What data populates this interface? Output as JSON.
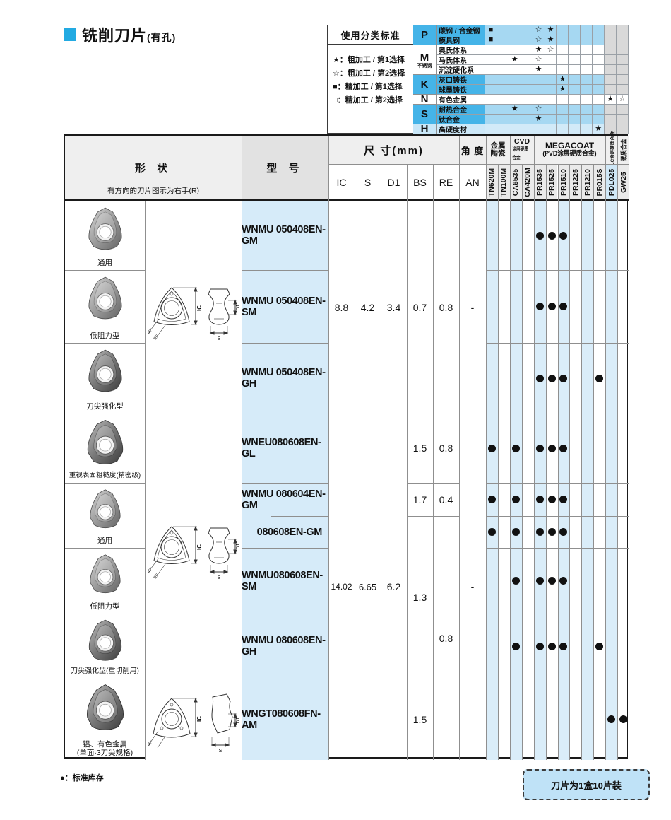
{
  "title": {
    "text": "铣削刀片",
    "suffix": "(有孔)"
  },
  "colors": {
    "accent_blue": "#22AAE2",
    "legend_blue": "#45B4E8",
    "legend_light_blue": "#A6D8F2",
    "row_light_blue": "#D2EAF8",
    "stripe_blue": "#DAEDF9",
    "model_blue": "#D6EBF9",
    "tail_gray": "#D9D9D9",
    "dot_black": "#111111"
  },
  "legend": {
    "header": "使用分类标准",
    "items": [
      "★：粗加工 / 第1选择",
      "☆：粗加工 / 第2选择",
      "■：精加工 / 第1选择",
      "□：精加工 / 第2选择"
    ],
    "letters": [
      {
        "label": "P",
        "note": ""
      },
      {
        "label": "M",
        "note": "不锈钢"
      },
      {
        "label": "K",
        "note": ""
      },
      {
        "label": "N",
        "note": ""
      },
      {
        "label": "S",
        "note": ""
      },
      {
        "label": "H",
        "note": ""
      }
    ],
    "rows": [
      {
        "material": "碳钢 / 合金钢",
        "tone": "blue",
        "marks": {
          "1": "■",
          "5": "☆",
          "6": "★"
        }
      },
      {
        "material": "模具钢",
        "tone": "blue",
        "marks": {
          "1": "■",
          "5": "☆",
          "6": "★"
        }
      },
      {
        "material": "奥氏体系",
        "tone": "white",
        "marks": {
          "5": "★",
          "6": "☆"
        }
      },
      {
        "material": "马氏体系",
        "tone": "white",
        "marks": {
          "3": "★",
          "5": "☆"
        }
      },
      {
        "material": "沉淀硬化系",
        "tone": "white",
        "marks": {
          "5": "★"
        }
      },
      {
        "material": "灰口铸铁",
        "tone": "blue",
        "marks": {
          "7": "★"
        }
      },
      {
        "material": "球墨铸铁",
        "tone": "blue",
        "marks": {
          "7": "★"
        }
      },
      {
        "material": "有色金属",
        "tone": "white",
        "tail": "white",
        "marks": {
          "11": "★",
          "12": "☆"
        }
      },
      {
        "material": "耐热合金",
        "tone": "blue",
        "marks": {
          "3": "★",
          "5": "☆"
        }
      },
      {
        "material": "钛合金",
        "tone": "blue",
        "marks": {
          "5": "★"
        }
      },
      {
        "material": "高硬度材",
        "tone": "lightblue",
        "marks": {
          "10": "★"
        }
      }
    ]
  },
  "table": {
    "headers": {
      "shape": "形  状",
      "shape_note": "有方向的刀片图示为右手(R)",
      "model": "型  号",
      "dims": "尺  寸(mm)",
      "angle": "角  度",
      "dim_cols": [
        "IC",
        "S",
        "D1",
        "BS",
        "RE"
      ],
      "angle_col": "AN",
      "grade_groups": [
        {
          "label": "金属陶瓷",
          "label2": ""
        },
        {
          "label": "CVD",
          "label2": "涂层硬质合金"
        },
        {
          "label": "MEGACOAT",
          "label2": "(PVD涂层硬质合金)"
        },
        {
          "label": "DLC涂层硬质合金",
          "label2": ""
        },
        {
          "label": "硬质合金",
          "label2": ""
        }
      ],
      "grades": [
        "TN620M",
        "TN100M",
        "CA6535",
        "CA420M",
        "PR1535",
        "PR1525",
        "PR1510",
        "PR1225",
        "PR1210",
        "PR015S",
        "PDL025",
        "GW25"
      ]
    },
    "photos": [
      {
        "label": "通用",
        "label2": ""
      },
      {
        "label": "低阻力型",
        "label2": ""
      },
      {
        "label": "刀尖强化型",
        "label2": ""
      },
      {
        "label": "重视表面粗糙度(精密级)",
        "label2": ""
      },
      {
        "label": "通用",
        "label2": ""
      },
      {
        "label": "低阻力型",
        "label2": ""
      },
      {
        "label": "刀尖强化型(重切削用)",
        "label2": ""
      },
      {
        "label": "铝、有色金属",
        "label2": "(单面·3刀尖规格)"
      }
    ],
    "rows": [
      {
        "model": "WNMU 050408EN-GM",
        "dots": [
          "PR1535",
          "PR1525",
          "PR1510"
        ]
      },
      {
        "model": "WNMU 050408EN-SM",
        "dots": [
          "PR1535",
          "PR1525",
          "PR1510"
        ]
      },
      {
        "model": "WNMU 050408EN-GH",
        "dots": [
          "PR1535",
          "PR1525",
          "PR1510",
          "PR015S"
        ]
      },
      {
        "model": "WNEU080608EN-GL",
        "dots": [
          "TN620M",
          "CA6535",
          "PR1535",
          "PR1525",
          "PR1510"
        ]
      },
      {
        "model": "WNMU 080604EN-GM",
        "dots": [
          "TN620M",
          "CA6535",
          "PR1535",
          "PR1525",
          "PR1510"
        ]
      },
      {
        "model": "080608EN-GM",
        "dots": [
          "TN620M",
          "CA6535",
          "PR1535",
          "PR1525",
          "PR1510"
        ]
      },
      {
        "model": "WNMU080608EN-SM",
        "dots": [
          "CA6535",
          "PR1535",
          "PR1525",
          "PR1510"
        ]
      },
      {
        "model": "WNMU 080608EN-GH",
        "dots": [
          "CA6535",
          "PR1535",
          "PR1525",
          "PR1510",
          "PR015S"
        ]
      },
      {
        "model": "WNGT080608FN-AM",
        "dots": [
          "PDL025",
          "GW25"
        ]
      }
    ],
    "groups": [
      {
        "dims": {
          "IC": "8.8",
          "S": "4.2",
          "D1": "3.4",
          "BS": "0.7",
          "RE": "0.8",
          "AN": "-"
        }
      },
      {
        "dims": {
          "IC": "14.02",
          "S": "6.65",
          "D1": "6.2",
          "AN": "-"
        },
        "bs": [
          "1.5",
          "1.7",
          "1.3",
          "1.5"
        ],
        "re": [
          "0.8",
          "0.4",
          "0.8"
        ]
      }
    ],
    "drawing_labels": {
      "ic": "IC",
      "d1": "D1",
      "s": "S",
      "angle": "45°",
      "re": "RE"
    }
  },
  "footer": {
    "stock_note": "●：标准库存",
    "pack_note": "刀片为1盒10片装"
  }
}
